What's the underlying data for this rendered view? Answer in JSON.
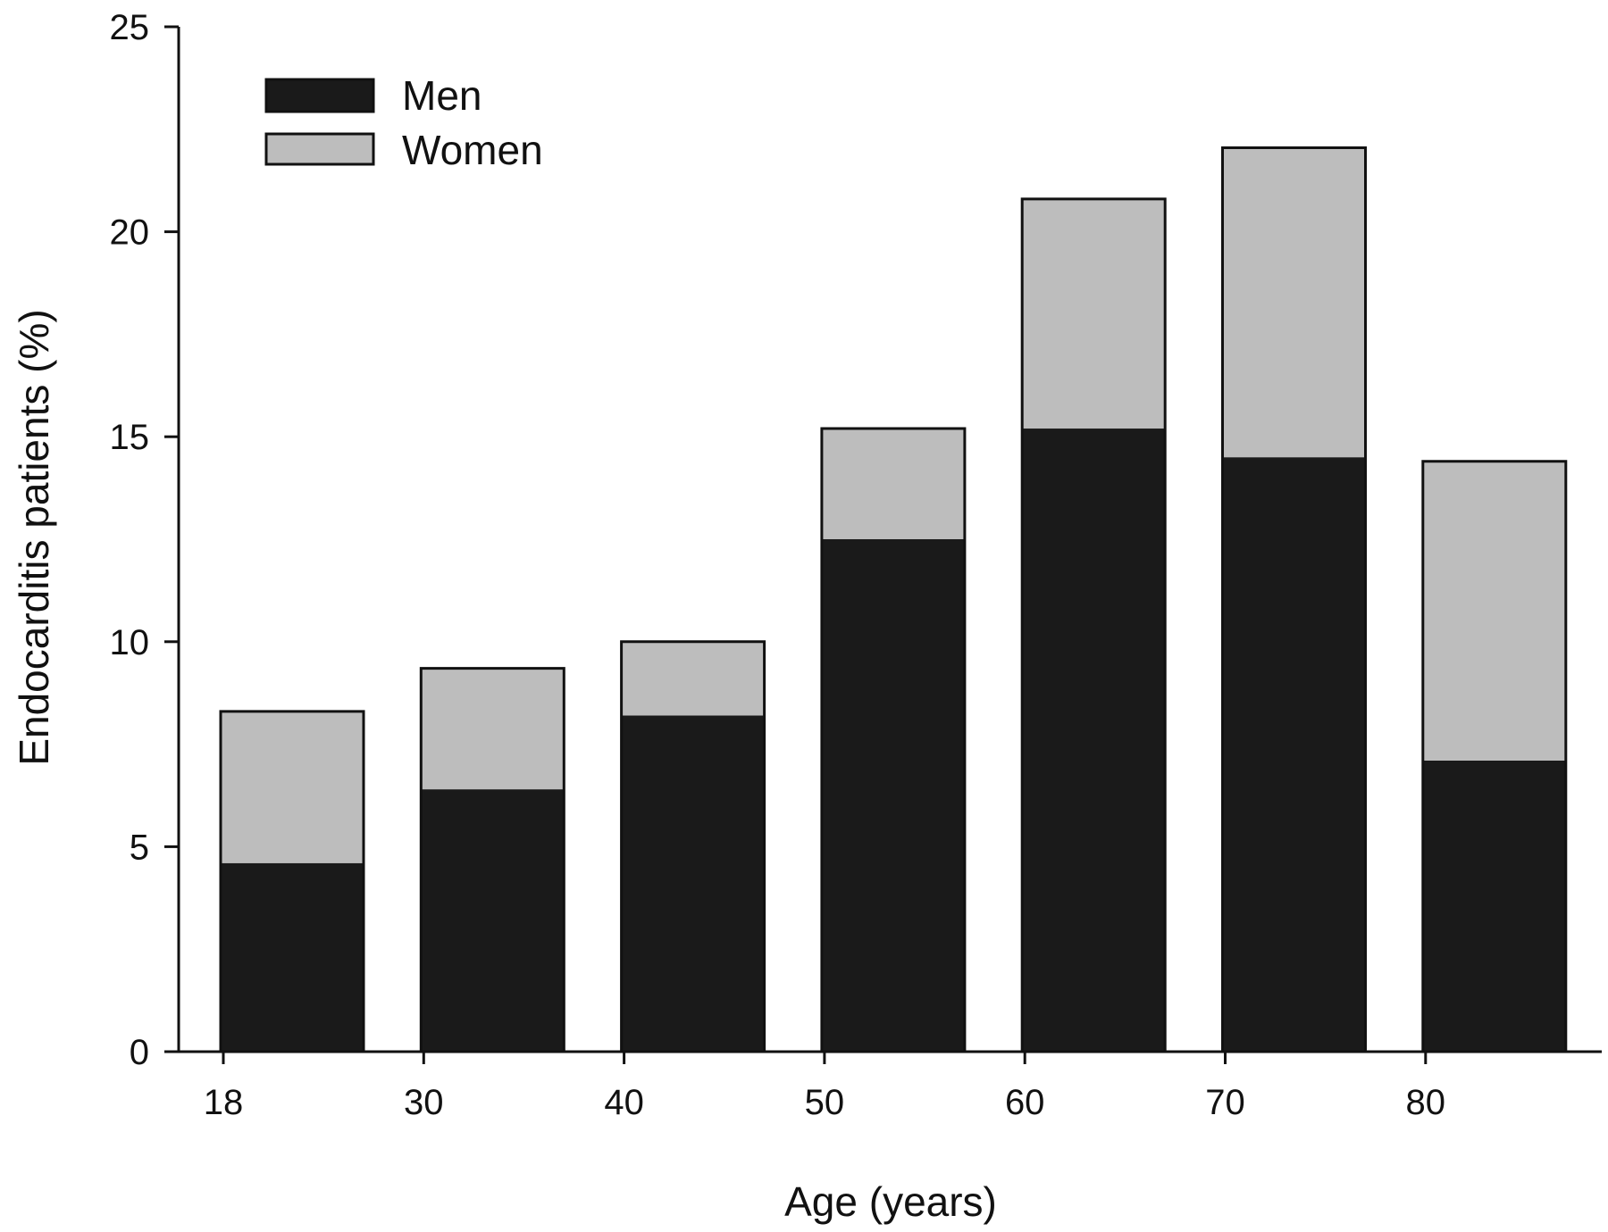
{
  "chart_data": {
    "type": "bar",
    "stacked": true,
    "x_bins": [
      18,
      30,
      40,
      50,
      60,
      70,
      80
    ],
    "x_tick_labels": [
      "18",
      "30",
      "40",
      "50",
      "60",
      "70",
      "80"
    ],
    "series": [
      {
        "name": "Men",
        "values": [
          4.6,
          6.4,
          8.2,
          12.5,
          15.2,
          14.5,
          7.1
        ]
      },
      {
        "name": "Women",
        "values": [
          3.7,
          2.95,
          1.8,
          2.7,
          5.6,
          7.55,
          7.3
        ]
      }
    ],
    "totals": [
      8.3,
      9.35,
      10.0,
      15.2,
      20.8,
      22.05,
      14.4
    ],
    "xlabel": "Age (years)",
    "ylabel": "Endocarditis patients (%)",
    "ylim": [
      0,
      25
    ],
    "y_ticks": [
      0,
      5,
      10,
      15,
      20,
      25
    ],
    "y_tick_labels": [
      "0",
      "5",
      "10",
      "15",
      "20",
      "25"
    ],
    "grid": false,
    "legend_position": "top-left",
    "colors": {
      "Men": "#1a1a1a",
      "Women": "#bdbdbd",
      "outline": "#111111"
    }
  }
}
